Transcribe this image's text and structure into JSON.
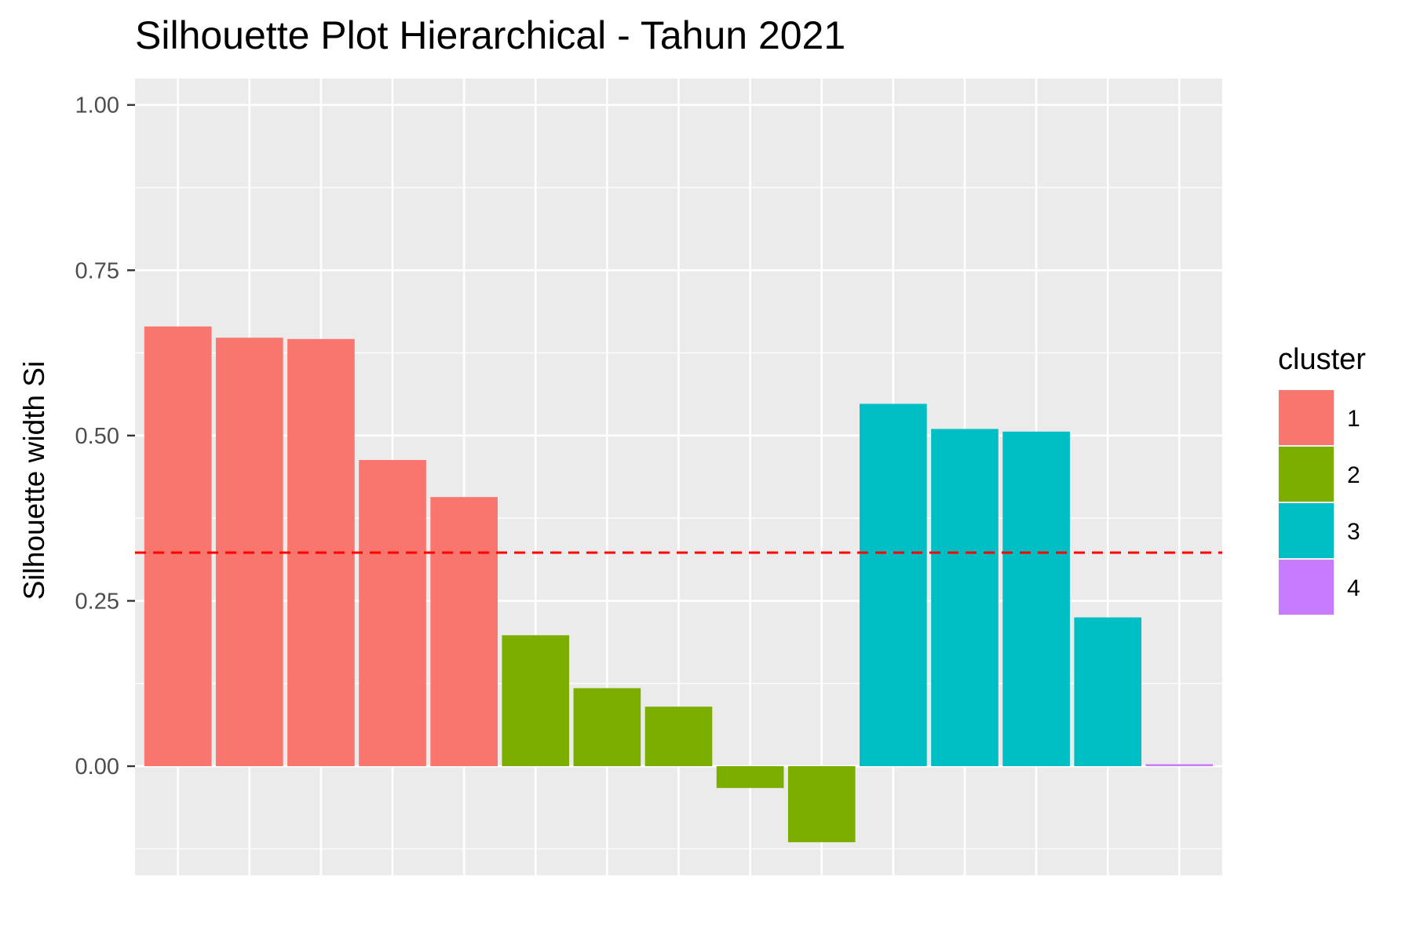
{
  "chart_data": {
    "type": "bar",
    "title": "Silhouette Plot Hierarchical - Tahun 2021",
    "xlabel": "",
    "ylabel": "Silhouette width Si",
    "ylim": [
      -0.165,
      1.04
    ],
    "yticks": [
      "0.00",
      "0.25",
      "0.50",
      "0.75",
      "1.00"
    ],
    "ytick_values": [
      0,
      0.25,
      0.5,
      0.75,
      1.0
    ],
    "grid": true,
    "legend": {
      "title": "cluster",
      "position": "right",
      "entries": [
        {
          "label": "1",
          "color": "#F8766D"
        },
        {
          "label": "2",
          "color": "#7CAE00"
        },
        {
          "label": "3",
          "color": "#00BFC4"
        },
        {
          "label": "4",
          "color": "#C77CFF"
        }
      ]
    },
    "average_line": {
      "value": 0.323,
      "color": "#FF0000",
      "style": "dashed"
    },
    "bars": [
      {
        "cluster": "1",
        "value": 0.665
      },
      {
        "cluster": "1",
        "value": 0.648
      },
      {
        "cluster": "1",
        "value": 0.646
      },
      {
        "cluster": "1",
        "value": 0.463
      },
      {
        "cluster": "1",
        "value": 0.407
      },
      {
        "cluster": "2",
        "value": 0.198
      },
      {
        "cluster": "2",
        "value": 0.118
      },
      {
        "cluster": "2",
        "value": 0.09
      },
      {
        "cluster": "2",
        "value": -0.033
      },
      {
        "cluster": "2",
        "value": -0.115
      },
      {
        "cluster": "3",
        "value": 0.548
      },
      {
        "cluster": "3",
        "value": 0.51
      },
      {
        "cluster": "3",
        "value": 0.506
      },
      {
        "cluster": "3",
        "value": 0.225
      },
      {
        "cluster": "4",
        "value": 0.003
      }
    ],
    "colors": {
      "panel_bg": "#EBEBEB",
      "grid": "#FFFFFF",
      "tick_mark": "#333333"
    }
  }
}
